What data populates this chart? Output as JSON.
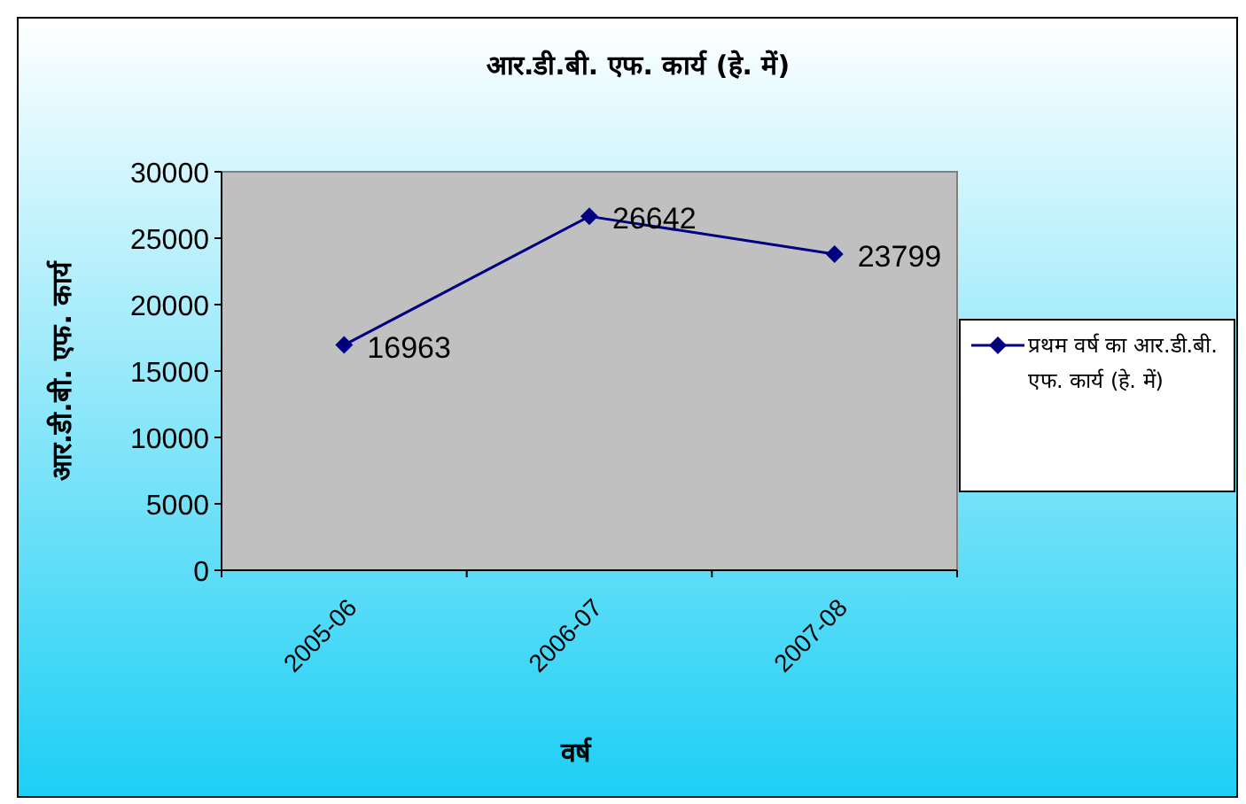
{
  "chart_data": {
    "type": "line",
    "title": "आर.डी.बी. एफ. कार्य (हे. में)",
    "xlabel": "वर्ष",
    "ylabel": "आर.डी.बी. एफ. कार्य",
    "categories": [
      "2005-06",
      "2006-07",
      "2007-08"
    ],
    "series": [
      {
        "name": "प्रथम वर्ष का आर.डी.बी. एफ. कार्य (हे. में)",
        "color": "#000080",
        "values": [
          16963,
          26642,
          23799
        ]
      }
    ],
    "ylim": [
      0,
      30000
    ],
    "yticks": [
      0,
      5000,
      10000,
      15000,
      20000,
      25000,
      30000
    ],
    "data_labels": true,
    "marker": "diamond",
    "line_style": "solid",
    "legend": "right",
    "grid": false
  }
}
